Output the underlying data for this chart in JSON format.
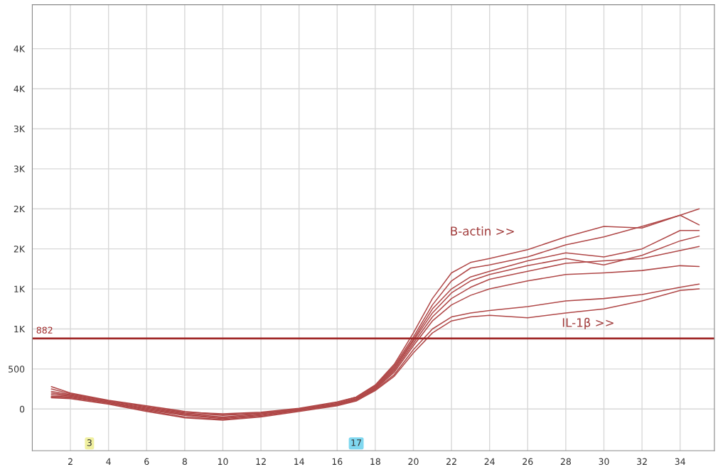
{
  "chart_data": {
    "type": "line",
    "x": [
      1,
      2,
      4,
      6,
      8,
      10,
      12,
      14,
      16,
      17,
      18,
      19,
      20,
      21,
      22,
      23,
      24,
      26,
      28,
      30,
      32,
      34,
      35
    ],
    "series": [
      {
        "color": "#b04848",
        "values": [
          280,
          200,
          110,
          40,
          -30,
          -70,
          -50,
          0,
          80,
          150,
          300,
          560,
          950,
          1380,
          1700,
          1830,
          1880,
          1990,
          2150,
          2280,
          2260,
          2420,
          2500
        ]
      },
      {
        "color": "#b04848",
        "values": [
          250,
          190,
          100,
          30,
          -40,
          -60,
          -40,
          10,
          90,
          150,
          290,
          540,
          900,
          1300,
          1600,
          1760,
          1800,
          1900,
          2050,
          2150,
          2280,
          2420,
          2300
        ]
      },
      {
        "color": "#b04848",
        "values": [
          220,
          180,
          100,
          20,
          -50,
          -80,
          -50,
          0,
          70,
          140,
          280,
          520,
          870,
          1250,
          1500,
          1650,
          1720,
          1850,
          1950,
          1900,
          2000,
          2230,
          2230
        ]
      },
      {
        "color": "#b04848",
        "values": [
          200,
          170,
          90,
          10,
          -60,
          -100,
          -60,
          -10,
          60,
          130,
          270,
          500,
          850,
          1200,
          1450,
          1600,
          1680,
          1790,
          1880,
          1800,
          1920,
          2100,
          2160
        ]
      },
      {
        "color": "#b04848",
        "values": [
          180,
          160,
          80,
          0,
          -70,
          -110,
          -70,
          -20,
          60,
          120,
          260,
          480,
          820,
          1150,
          1380,
          1520,
          1620,
          1720,
          1820,
          1850,
          1880,
          1980,
          2030
        ]
      },
      {
        "color": "#b04848",
        "values": [
          160,
          150,
          80,
          -10,
          -80,
          -120,
          -80,
          -10,
          50,
          120,
          250,
          460,
          790,
          1100,
          1300,
          1420,
          1500,
          1600,
          1680,
          1700,
          1730,
          1790,
          1780
        ]
      },
      {
        "color": "#b04848",
        "values": [
          150,
          140,
          70,
          -20,
          -100,
          -130,
          -90,
          -20,
          50,
          110,
          240,
          430,
          740,
          1000,
          1150,
          1200,
          1230,
          1280,
          1350,
          1380,
          1430,
          1520,
          1560
        ]
      },
      {
        "color": "#b04848",
        "values": [
          140,
          130,
          60,
          -30,
          -110,
          -140,
          -100,
          -30,
          40,
          100,
          230,
          410,
          700,
          950,
          1100,
          1150,
          1170,
          1140,
          1200,
          1250,
          1350,
          1480,
          1500
        ]
      }
    ],
    "xlim": [
      0,
      35.8
    ],
    "ylim": [
      -520,
      5050
    ],
    "xticks": [
      2,
      4,
      6,
      8,
      10,
      12,
      14,
      16,
      18,
      20,
      22,
      24,
      26,
      28,
      30,
      32,
      34
    ],
    "yticks": [
      0,
      500,
      {
        "value": 1000,
        "label": "1K"
      },
      {
        "value": 1500,
        "label": "1K"
      },
      {
        "value": 2000,
        "label": "2K"
      },
      {
        "value": 2500,
        "label": "2K"
      },
      {
        "value": 3000,
        "label": "3K"
      },
      {
        "value": 3500,
        "label": "3K"
      },
      {
        "value": 4000,
        "label": "4K"
      },
      {
        "value": 4500,
        "label": "4K"
      }
    ],
    "ref_lines": [
      {
        "axis": "y",
        "value": 882,
        "label": "882",
        "color": "#a02828"
      }
    ],
    "annotations": [
      "B-actin >>",
      "IL-1β >>",
      {
        "text": "3",
        "x": 3,
        "y": -430
      },
      {
        "text": "17",
        "x": 17,
        "y": -430
      }
    ],
    "grid": true,
    "legend": false,
    "marker": "none",
    "line_style": "solid"
  }
}
